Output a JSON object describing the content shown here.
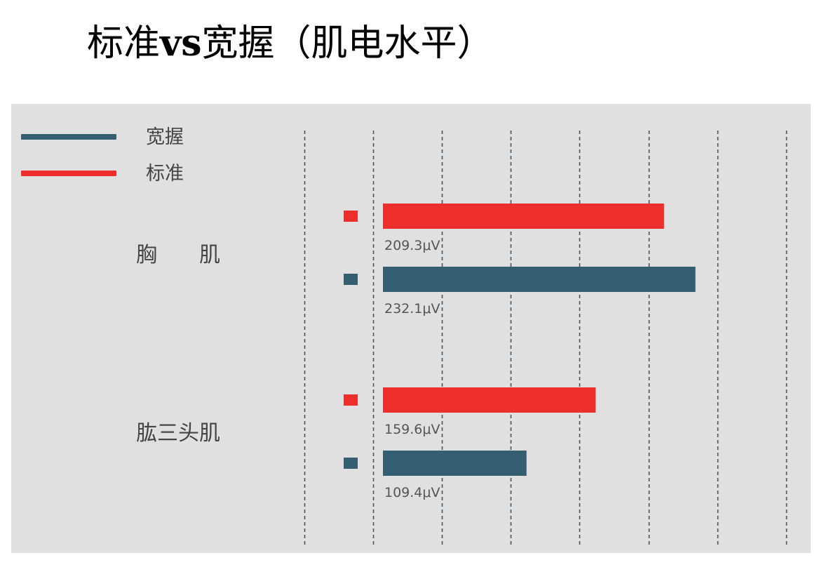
{
  "title": {
    "part1": "标准",
    "part2": "vs",
    "part3": "宽握（肌电水平）"
  },
  "colors": {
    "wide": "#345e72",
    "standard": "#ec2e2c",
    "grid": "#3f5869",
    "panel": "#e0e0e0"
  },
  "chart_data": {
    "type": "bar",
    "orientation": "horizontal",
    "categories": [
      "胸　　肌",
      "肱三头肌"
    ],
    "series": [
      {
        "name": "标准",
        "key": "standard",
        "values": [
          209.3,
          159.6
        ],
        "labels": [
          "209.3μV",
          "159.6μV"
        ]
      },
      {
        "name": "宽握",
        "key": "wide",
        "values": [
          232.1,
          109.4
        ],
        "labels": [
          "232.1μV",
          "109.4μV"
        ]
      }
    ],
    "legend": [
      {
        "name": "宽握",
        "key": "wide"
      },
      {
        "name": "标准",
        "key": "standard"
      }
    ],
    "legend_position": "top-left",
    "unit": "μV",
    "xlim": [
      0,
      350
    ],
    "grid": true,
    "gridlines": [
      -50,
      0,
      50,
      100,
      150,
      200,
      250,
      300,
      350
    ]
  }
}
